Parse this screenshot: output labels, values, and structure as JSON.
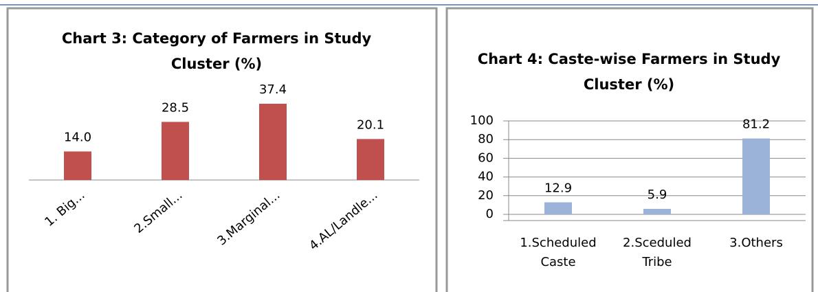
{
  "chart_data": [
    {
      "type": "bar",
      "title": "Chart 3: Category of Farmers in Study Cluster (%)",
      "categories": [
        "1. Big...",
        "2.Small...",
        "3.Marginal...",
        "4.AL/Landle..."
      ],
      "values": [
        14.0,
        28.5,
        37.4,
        20.1
      ],
      "value_labels": [
        "14.0",
        "28.5",
        "37.4",
        "20.1"
      ],
      "color": "#c0504d"
    },
    {
      "type": "bar",
      "title": "Chart 4: Caste-wise Farmers in Study Cluster (%)",
      "categories": [
        "1.Scheduled Caste",
        "2.Sceduled Tribe",
        "3.Others"
      ],
      "values": [
        12.9,
        5.9,
        81.2
      ],
      "color": "#9bb3d9",
      "ylim": [
        0,
        100
      ],
      "yticks": [
        0,
        20,
        40,
        60,
        80,
        100
      ],
      "grid": true
    }
  ]
}
